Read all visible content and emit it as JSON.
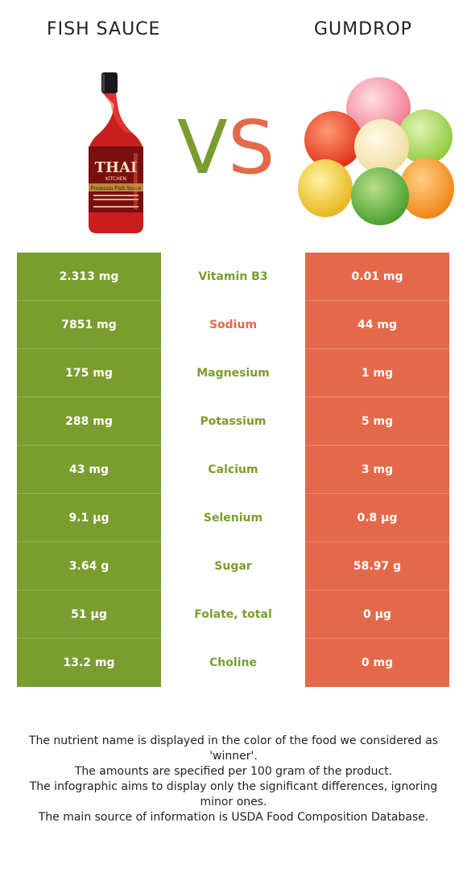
{
  "header": {
    "left_title": "FISH SAUCE",
    "right_title": "GUMDROP",
    "vs_v": "V",
    "vs_s": "S"
  },
  "bottle_label": {
    "brand": "THAI",
    "sub": "KITCHEN",
    "product": "Premium Fish Sauce"
  },
  "colors": {
    "winner_left": "#7a9d2f",
    "winner_right": "#e4694a"
  },
  "rows": [
    {
      "left": "2.313 mg",
      "nutrient": "Vitamin B3",
      "right": "0.01 mg",
      "winner": "left"
    },
    {
      "left": "7851 mg",
      "nutrient": "Sodium",
      "right": "44 mg",
      "winner": "right"
    },
    {
      "left": "175 mg",
      "nutrient": "Magnesium",
      "right": "1 mg",
      "winner": "left"
    },
    {
      "left": "288 mg",
      "nutrient": "Potassium",
      "right": "5 mg",
      "winner": "left"
    },
    {
      "left": "43 mg",
      "nutrient": "Calcium",
      "right": "3 mg",
      "winner": "left"
    },
    {
      "left": "9.1 µg",
      "nutrient": "Selenium",
      "right": "0.8 µg",
      "winner": "left"
    },
    {
      "left": "3.64 g",
      "nutrient": "Sugar",
      "right": "58.97 g",
      "winner": "left"
    },
    {
      "left": "51 µg",
      "nutrient": "Folate, total",
      "right": "0 µg",
      "winner": "left"
    },
    {
      "left": "13.2 mg",
      "nutrient": "Choline",
      "right": "0 mg",
      "winner": "left"
    }
  ],
  "footer": {
    "line1": "The nutrient name is displayed in the color of the food we considered as 'winner'.",
    "line2": "The amounts are specified per 100 gram of the product.",
    "line3": "The infographic aims to display only the significant differences, ignoring minor ones.",
    "line4": "The main source of information is USDA Food Composition Database."
  }
}
